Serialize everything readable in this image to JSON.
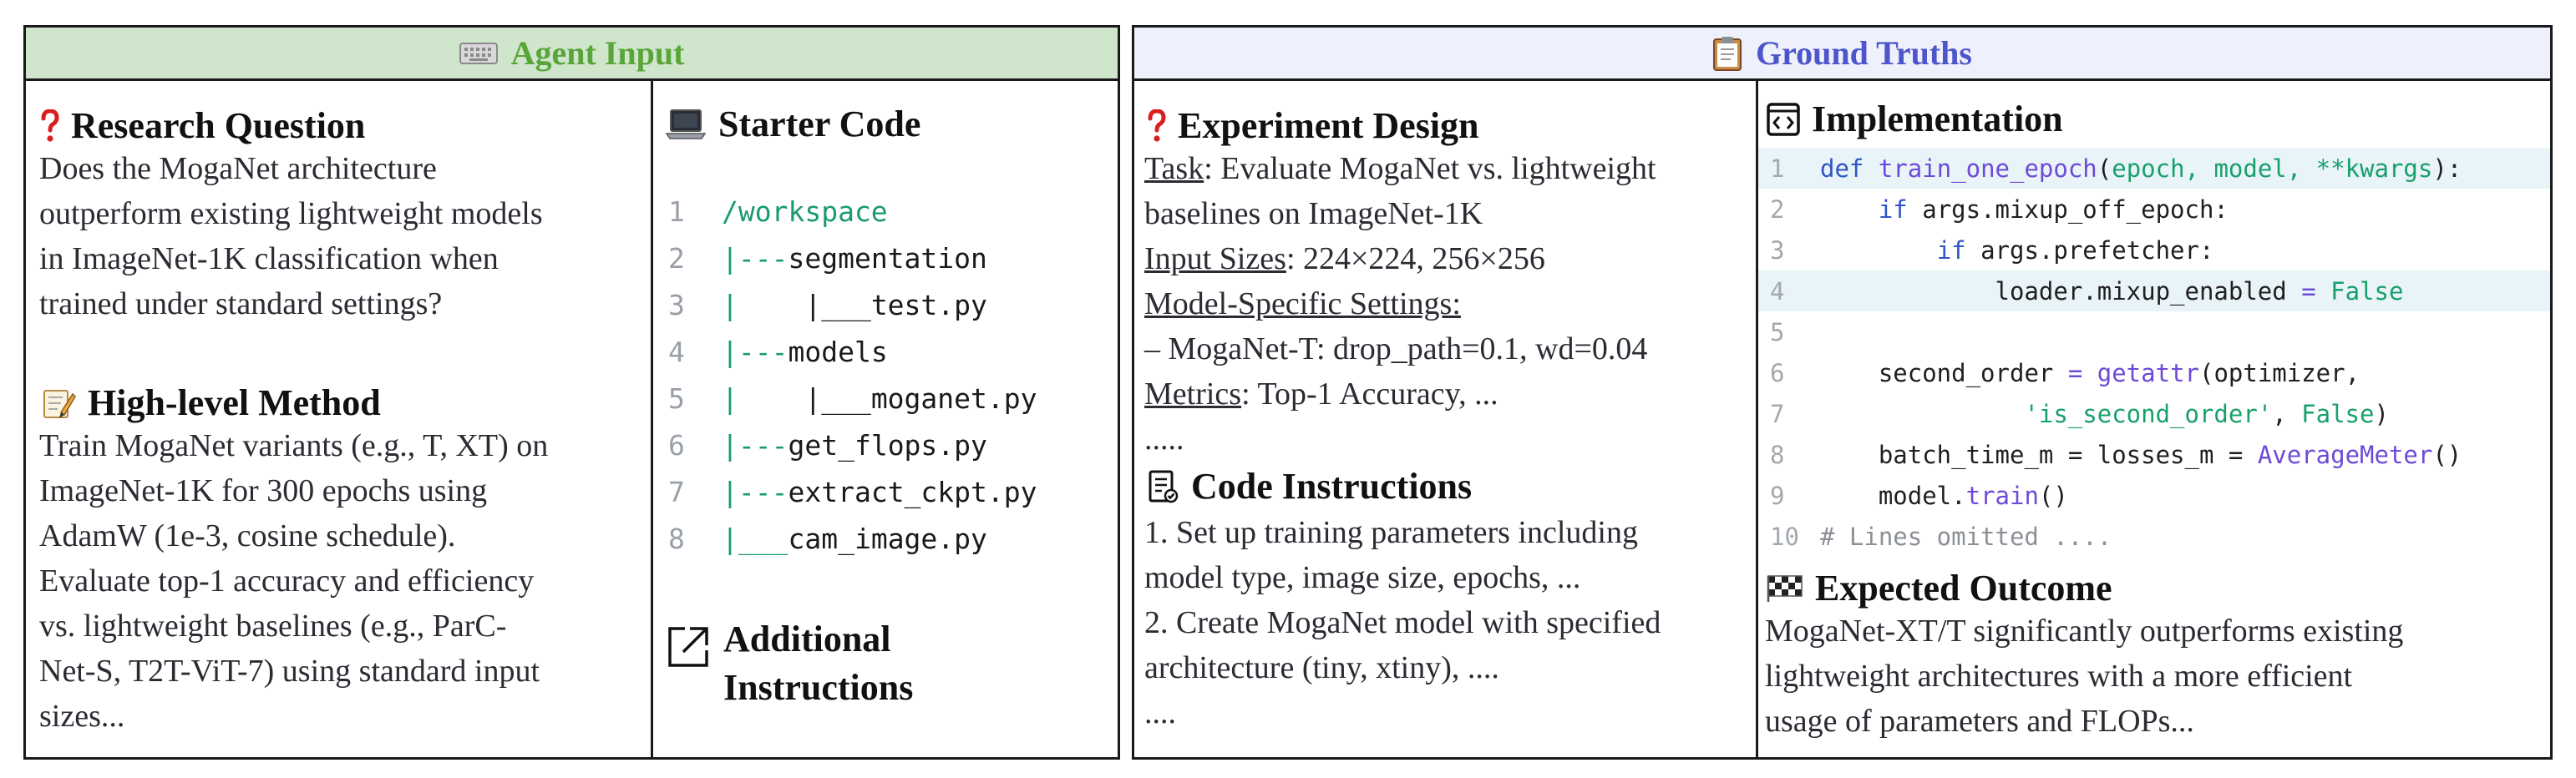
{
  "agent_input": {
    "header": "Agent Input",
    "header_icon": "keyboard-icon",
    "research_question": {
      "title": "Research Question",
      "icon": "question-mark-icon",
      "lines": [
        "Does the MogaNet architecture",
        "outperform existing lightweight models",
        "in ImageNet-1K classification when",
        "trained under standard settings?"
      ]
    },
    "method": {
      "title": "High-level Method",
      "icon": "memo-icon",
      "lines": [
        "Train MogaNet variants (e.g., T, XT) on",
        "ImageNet-1K for 300 epochs using",
        "AdamW (1e-3, cosine schedule).",
        "Evaluate top-1 accuracy and efficiency",
        "vs. lightweight baselines (e.g., ParC-",
        "Net-S, T2T-ViT-7) using standard input",
        "sizes..."
      ]
    },
    "starter_code": {
      "title": "Starter Code",
      "icon": "laptop-icon",
      "lines": [
        {
          "n": "1",
          "branch": "",
          "text": "/workspace"
        },
        {
          "n": "2",
          "branch": "|---",
          "text": "segmentation"
        },
        {
          "n": "3",
          "branch": "|    ",
          "text": "|___test.py"
        },
        {
          "n": "4",
          "branch": "|---",
          "text": "models"
        },
        {
          "n": "5",
          "branch": "|    ",
          "text": "|___moganet.py"
        },
        {
          "n": "6",
          "branch": "|---",
          "text": "get_flops.py"
        },
        {
          "n": "7",
          "branch": "|---",
          "text": "extract_ckpt.py"
        },
        {
          "n": "8",
          "branch": "|___",
          "text": "cam_image.py"
        }
      ]
    },
    "additional": {
      "title_line1": "Additional",
      "title_line2": "Instructions",
      "icon": "external-link-icon"
    }
  },
  "ground_truths": {
    "header": "Ground Truths",
    "header_icon": "clipboard-icon",
    "experiment_design": {
      "title": "Experiment Design",
      "icon": "question-mark-icon",
      "task_label": "Task",
      "task_text": ": Evaluate MogaNet vs. lightweight",
      "task_text2": "baselines on ImageNet-1K",
      "input_label": "Input Sizes",
      "input_text": ": 224×224, 256×256",
      "settings_label": "Model-Specific Settings:",
      "settings_text": "– MogaNet-T: drop_path=0.1, wd=0.04",
      "metrics_label": "Metrics",
      "metrics_text": ": Top-1 Accuracy, ...",
      "ellipsis": "....."
    },
    "code_instructions": {
      "title": "Code Instructions",
      "icon": "checklist-icon",
      "lines": [
        "1. Set up training parameters including",
        "model type, image size, epochs, ...",
        "2. Create MogaNet model with specified",
        "architecture (tiny, xtiny), ....",
        "...."
      ]
    },
    "implementation": {
      "title": "Implementation",
      "icon": "code-icon"
    },
    "expected_outcome": {
      "title": "Expected Outcome",
      "icon": "checkered-flag-icon",
      "lines": [
        "MogaNet-XT/T significantly outperforms existing",
        "lightweight architectures with a more efficient",
        "usage of parameters and FLOPs..."
      ]
    }
  },
  "code": {
    "l1": {
      "n": "1",
      "kw": "def",
      "fn": "train_one_epoch",
      "open": "(",
      "args": "epoch, model, **kwargs",
      "close": "):"
    },
    "l2": {
      "n": "2",
      "kw": "if",
      "rest": "args.mixup_off_epoch:"
    },
    "l3": {
      "n": "3",
      "kw": "if",
      "rest": "args.prefetcher:"
    },
    "l4": {
      "n": "4",
      "pre": "loader.mixup_enabled",
      "op": "=",
      "val": "False"
    },
    "l5": {
      "n": "5"
    },
    "l6": {
      "n": "6",
      "pre": "second_order",
      "op": "=",
      "fn": "getattr",
      "rest": "(optimizer,"
    },
    "l7": {
      "n": "7",
      "str": "'is_second_order'",
      "sep": ", ",
      "val": "False",
      "close": ")"
    },
    "l8": {
      "n": "8",
      "pre": "batch_time_m = losses_m =",
      "fn": "AverageMeter",
      "close": "()"
    },
    "l9": {
      "n": "9",
      "pre": "model.",
      "fn": "train",
      "close": "()"
    },
    "l10": {
      "n": "10",
      "comment": "# Lines omitted ...."
    }
  }
}
